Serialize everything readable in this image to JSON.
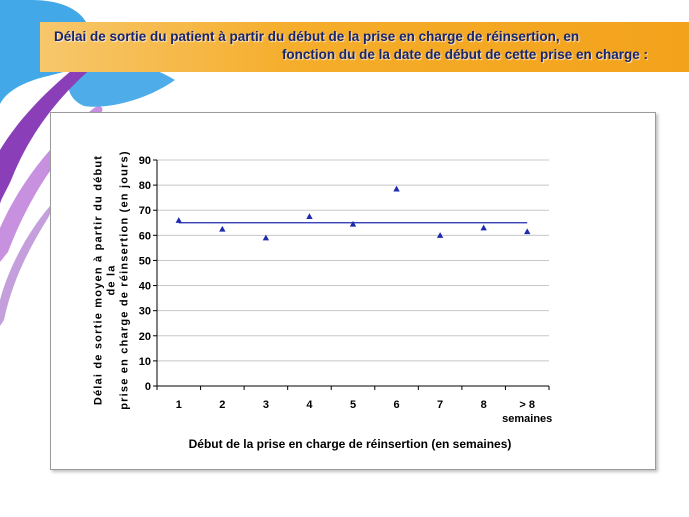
{
  "title": {
    "line1": "Délai de sortie du patient à partir du début de la prise en charge de réinsertion, en",
    "line2": "fonction du de la date de début de cette prise en charge :"
  },
  "colors": {
    "banner": "#f5ad2a",
    "title_text": "#17246e",
    "marker": "#1f2ab0",
    "mean_line": "#1f2ab0",
    "grid": "#c8c8c8"
  },
  "chart_data": {
    "type": "scatter",
    "xlabel": "Début de la prise en charge de réinsertion (en semaines)",
    "ylabel_lines": [
      "Délai de sortie moyen à partir du début de la",
      "prise en charge de réinsertion (en jours)"
    ],
    "categories": [
      "1",
      "2",
      "3",
      "4",
      "5",
      "6",
      "7",
      "8",
      "> 8 semaines"
    ],
    "category_lines": [
      [
        "1"
      ],
      [
        "2"
      ],
      [
        "3"
      ],
      [
        "4"
      ],
      [
        "5"
      ],
      [
        "6"
      ],
      [
        "7"
      ],
      [
        "8"
      ],
      [
        "> 8",
        "semaines"
      ]
    ],
    "series": [
      {
        "values": [
          66,
          62.5,
          59,
          67.5,
          64.5,
          78.5,
          60,
          63,
          61.5
        ],
        "marker": "triangle"
      }
    ],
    "mean_line": 65,
    "ylim": [
      0,
      90
    ],
    "yticks": [
      0,
      10,
      20,
      30,
      40,
      50,
      60,
      70,
      80,
      90
    ],
    "grid": true,
    "legend": "none"
  }
}
